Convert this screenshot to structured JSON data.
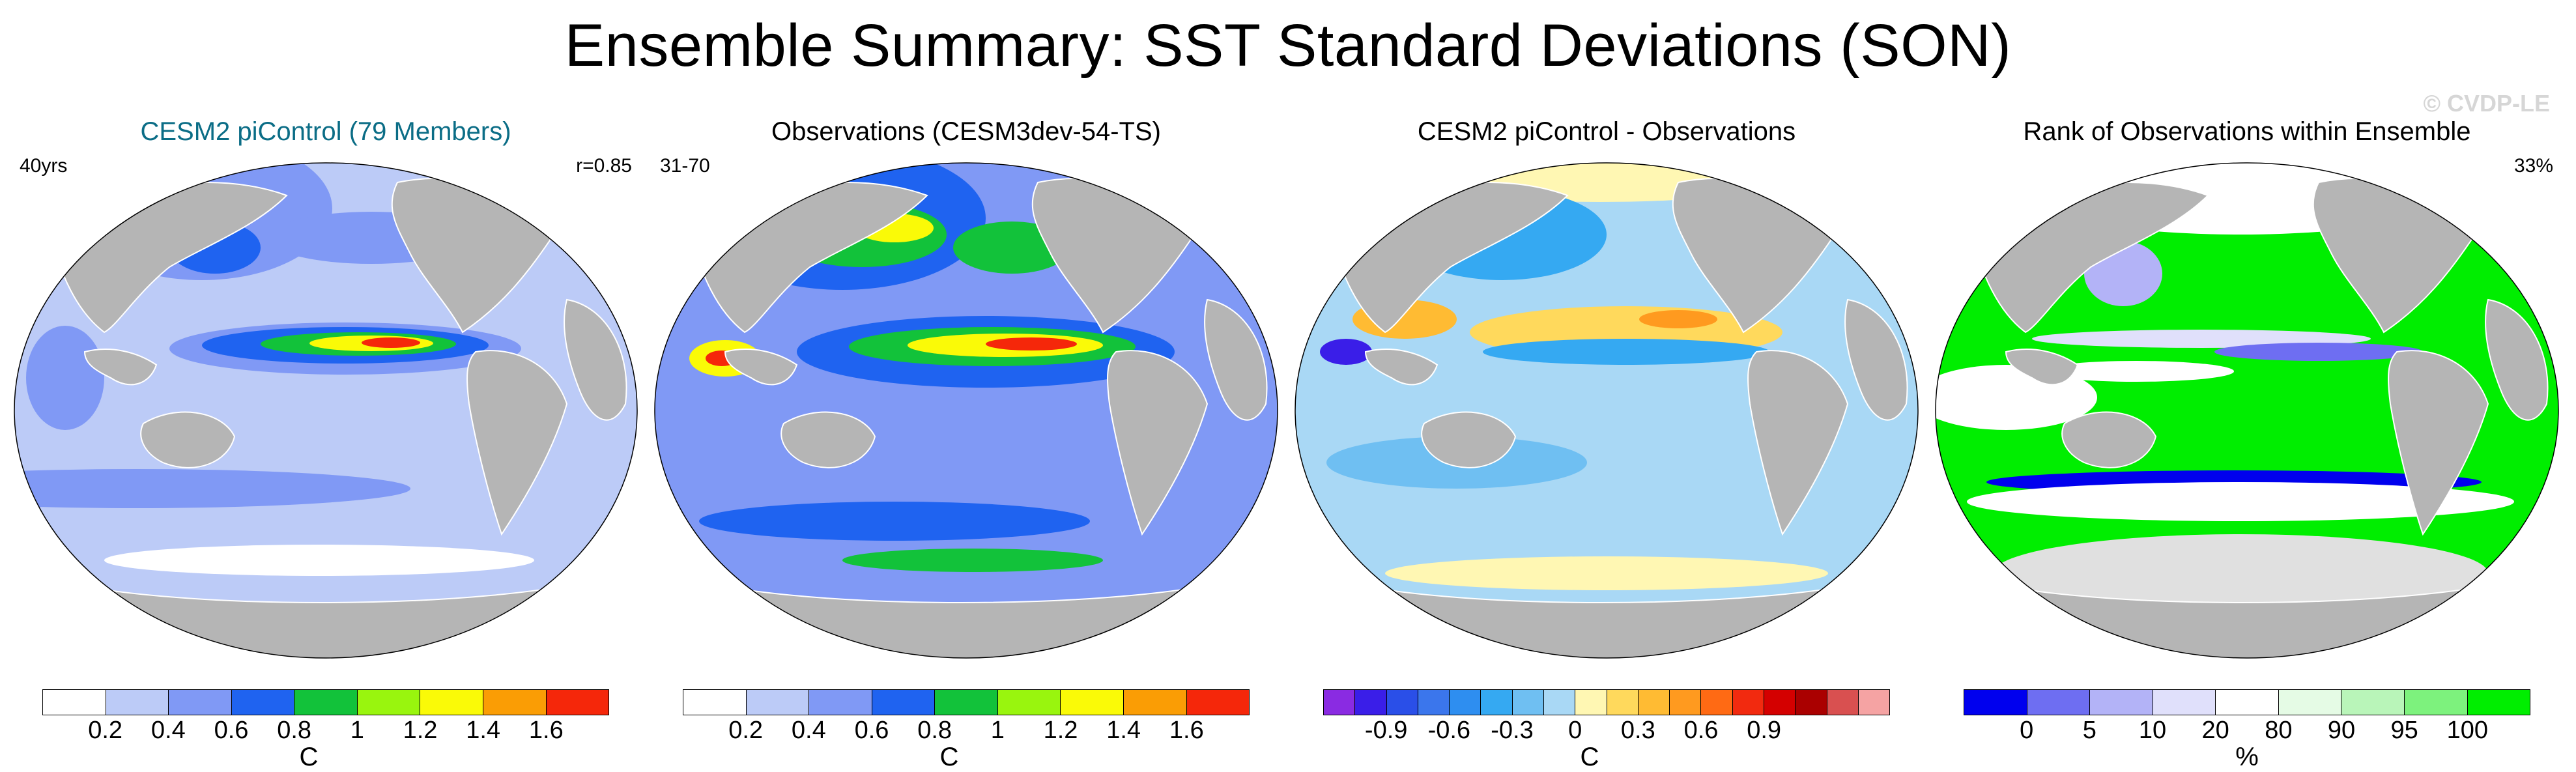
{
  "title": "Ensemble Summary: SST Standard Deviations (SON)",
  "watermark": "© CVDP-LE",
  "colors": {
    "land": "#b5b5b5",
    "ocean_base": "#bccbf7",
    "teal_title": "#0b6d86"
  },
  "chart_data": [
    {
      "type": "heatmap",
      "title": "CESM2 piControl (79 Members)",
      "left_label": "40yrs",
      "right_label": "r=0.85",
      "colorbar": {
        "colors": [
          "#ffffff",
          "#bccbf7",
          "#8099f5",
          "#1f63f0",
          "#12c23a",
          "#99f50e",
          "#fafa07",
          "#fa9d05",
          "#f5270a"
        ],
        "ticks": [
          "0.2",
          "0.4",
          "0.6",
          "0.8",
          "1",
          "1.2",
          "1.4",
          "1.6"
        ],
        "unit": "C"
      }
    },
    {
      "type": "heatmap",
      "title": "Observations (CESM3dev-54-TS)",
      "left_label": "31-70",
      "right_label": "",
      "colorbar": {
        "colors": [
          "#ffffff",
          "#bccbf7",
          "#8099f5",
          "#1f63f0",
          "#12c23a",
          "#99f50e",
          "#fafa07",
          "#fa9d05",
          "#f5270a"
        ],
        "ticks": [
          "0.2",
          "0.4",
          "0.6",
          "0.8",
          "1",
          "1.2",
          "1.4",
          "1.6"
        ],
        "unit": "C"
      }
    },
    {
      "type": "heatmap",
      "title": "CESM2 piControl - Observations",
      "left_label": "",
      "right_label": "",
      "colorbar": {
        "colors": [
          "#8a2be2",
          "#3a1ee8",
          "#2a4fe8",
          "#3b76ec",
          "#2e8ef0",
          "#35a9f2",
          "#6fbff2",
          "#a9d8f5",
          "#fff7b3",
          "#ffd95c",
          "#ffbb33",
          "#ff9a1f",
          "#ff6a14",
          "#f22a0f",
          "#d40000",
          "#aa0000",
          "#d95050",
          "#f5a3a3"
        ],
        "ticks": [
          "-0.9",
          "-0.6",
          "-0.3",
          "0",
          "0.3",
          "0.6",
          "0.9"
        ],
        "unit": "C"
      }
    },
    {
      "type": "heatmap",
      "title": "Rank of Observations within Ensemble",
      "left_label": "",
      "right_label": "33%",
      "colorbar": {
        "colors": [
          "#0000ee",
          "#6e6ef2",
          "#b3b3f7",
          "#e0e0fb",
          "#ffffff",
          "#e5fbe5",
          "#b9f5b9",
          "#7df27d",
          "#00ee00"
        ],
        "ticks": [
          "0",
          "5",
          "10",
          "20",
          "80",
          "90",
          "95",
          "100"
        ],
        "unit": "%"
      }
    }
  ]
}
